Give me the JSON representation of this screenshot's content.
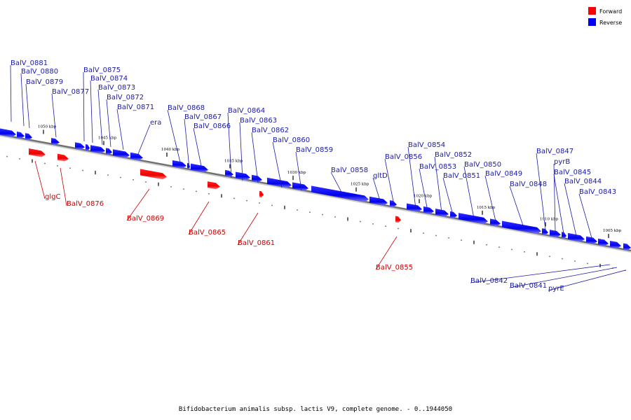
{
  "colors": {
    "forward": "#ff0000",
    "reverse": "#0000ff",
    "forward_label": "#cc0000",
    "reverse_label": "#1a1aaa",
    "backbone": "#808080"
  },
  "legend": [
    {
      "id": "forward",
      "label": "Forward",
      "color": "#ff0000"
    },
    {
      "id": "reverse",
      "label": "Reverse",
      "color": "#0000ff"
    }
  ],
  "caption": "Bifidobacterium animalis subsp. lactis V9, complete genome. - 0..1944050",
  "scale": {
    "unit": "kbp",
    "tick_labels": [
      "1050 kbp",
      "1045 kbp",
      "1040 kbp",
      "1035 kbp",
      "1030 kbp",
      "1025 kbp",
      "1020 kbp",
      "1015 kbp",
      "1010 kbp",
      "1005 kbp"
    ]
  },
  "genes_reverse": [
    "BalV_0881",
    "BalV_0880",
    "BalV_0879",
    "BalV_0877",
    "BalV_0875",
    "BalV_0874",
    "BalV_0873",
    "BalV_0872",
    "BalV_0871",
    "era",
    "BalV_0868",
    "BalV_0867",
    "BalV_0866",
    "BalV_0864",
    "BalV_0863",
    "BalV_0862",
    "BalV_0860",
    "BalV_0859",
    "BalV_0858",
    "gltD",
    "BalV_0856",
    "BalV_0854",
    "BalV_0853",
    "BalV_0852",
    "BalV_0851",
    "BalV_0850",
    "BalV_0849",
    "BalV_0848",
    "BalV_0847",
    "pyrB",
    "BalV_0845",
    "BalV_0844",
    "BalV_0843",
    "BalV_0842",
    "BalV_0841",
    "pyrE"
  ],
  "genes_forward": [
    "glgC",
    "BalV_0876",
    "BalV_0869",
    "BalV_0865",
    "BalV_0861",
    "BalV_0855"
  ]
}
